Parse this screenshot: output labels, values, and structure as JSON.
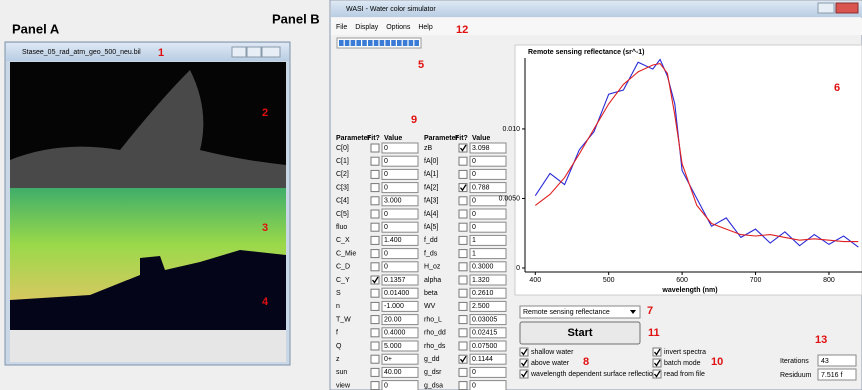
{
  "panel_a": {
    "label": "Panel A",
    "window_title": "Stasee_05_rad_atm_geo_500_neu.bil",
    "markers": [
      "1",
      "2",
      "3",
      "4"
    ]
  },
  "panel_b": {
    "label": "Panel B",
    "window_title": "WASI - Water color simulator",
    "menu": [
      "File",
      "Display",
      "Options",
      "Help"
    ],
    "markers": [
      "5",
      "6",
      "7",
      "8",
      "9",
      "10",
      "11",
      "12",
      "13"
    ],
    "table_headers": [
      "Parameter",
      "Fit?",
      "Value"
    ],
    "params_left": [
      {
        "name": "C[0]",
        "fit": false,
        "value": "0",
        "disabled": false
      },
      {
        "name": "C[1]",
        "fit": false,
        "value": "0",
        "disabled": false
      },
      {
        "name": "C[2]",
        "fit": false,
        "value": "0",
        "disabled": false
      },
      {
        "name": "C[3]",
        "fit": false,
        "value": "0",
        "disabled": false
      },
      {
        "name": "C[4]",
        "fit": false,
        "value": "3.000",
        "disabled": false
      },
      {
        "name": "C[5]",
        "fit": false,
        "value": "0",
        "disabled": false
      },
      {
        "name": "fluo",
        "fit": false,
        "value": "0",
        "disabled": true
      },
      {
        "name": "C_X",
        "fit": false,
        "value": "1.400",
        "disabled": false
      },
      {
        "name": "C_Mie",
        "fit": false,
        "value": "0",
        "disabled": false
      },
      {
        "name": "C_D",
        "fit": false,
        "value": "0",
        "disabled": false
      },
      {
        "name": "C_Y",
        "fit": true,
        "value": "0.1357",
        "disabled": false
      },
      {
        "name": "S",
        "fit": false,
        "value": "0.01400",
        "disabled": false
      },
      {
        "name": "n",
        "fit": false,
        "value": "-1.000",
        "disabled": false
      },
      {
        "name": "T_W",
        "fit": false,
        "value": "20.00",
        "disabled": true
      },
      {
        "name": "f",
        "fit": false,
        "value": "0.4000",
        "disabled": true
      },
      {
        "name": "Q",
        "fit": false,
        "value": "5.000",
        "disabled": false
      },
      {
        "name": "z",
        "fit": false,
        "value": "0+",
        "disabled": true
      },
      {
        "name": "sun",
        "fit": false,
        "value": "40.00",
        "disabled": false
      },
      {
        "name": "view",
        "fit": false,
        "value": "0",
        "disabled": false
      }
    ],
    "params_right": [
      {
        "name": "zB",
        "fit": true,
        "value": "3.098",
        "disabled": false
      },
      {
        "name": "fA[0]",
        "fit": false,
        "value": "0",
        "disabled": false
      },
      {
        "name": "fA[1]",
        "fit": false,
        "value": "0",
        "disabled": false
      },
      {
        "name": "fA[2]",
        "fit": true,
        "value": "0.788",
        "disabled": false
      },
      {
        "name": "fA[3]",
        "fit": false,
        "value": "0",
        "disabled": false
      },
      {
        "name": "fA[4]",
        "fit": false,
        "value": "0",
        "disabled": false
      },
      {
        "name": "fA[5]",
        "fit": false,
        "value": "0",
        "disabled": false
      },
      {
        "name": "f_dd",
        "fit": false,
        "value": "1",
        "disabled": true
      },
      {
        "name": "f_ds",
        "fit": false,
        "value": "1",
        "disabled": true
      },
      {
        "name": "H_oz",
        "fit": false,
        "value": "0.3000",
        "disabled": true
      },
      {
        "name": "alpha",
        "fit": false,
        "value": "1.320",
        "disabled": true
      },
      {
        "name": "beta",
        "fit": false,
        "value": "0.2610",
        "disabled": true
      },
      {
        "name": "WV",
        "fit": false,
        "value": "2.500",
        "disabled": true
      },
      {
        "name": "rho_L",
        "fit": false,
        "value": "0.03005",
        "disabled": true
      },
      {
        "name": "rho_dd",
        "fit": false,
        "value": "0.02415",
        "disabled": true
      },
      {
        "name": "rho_ds",
        "fit": false,
        "value": "0.07500",
        "disabled": true
      },
      {
        "name": "g_dd",
        "fit": true,
        "value": "0.1144",
        "disabled": false
      },
      {
        "name": "g_dsr",
        "fit": false,
        "value": "0",
        "disabled": false
      },
      {
        "name": "g_dsa",
        "fit": false,
        "value": "0",
        "disabled": false
      }
    ],
    "dropdown": "Remote sensing reflectance",
    "start_button": "Start",
    "options_left": [
      {
        "label": "shallow water",
        "checked": true
      },
      {
        "label": "above water",
        "checked": true
      },
      {
        "label": "wavelength dependent surface reflections",
        "checked": true
      }
    ],
    "options_right": [
      {
        "label": "invert spectra",
        "checked": true
      },
      {
        "label": "batch mode",
        "checked": true
      },
      {
        "label": "read from file",
        "checked": true
      }
    ],
    "iterations_label": "Iterations",
    "iterations": "43",
    "residuum_label": "Residuum",
    "residuum": "7.516 f",
    "plot": {
      "type": "line",
      "title": "Remote sensing reflectance (sr^-1)",
      "x_label": "wavelength (nm)",
      "x": [
        400,
        420,
        440,
        460,
        480,
        500,
        520,
        540,
        560,
        570,
        580,
        590,
        600,
        620,
        640,
        660,
        680,
        700,
        720,
        740,
        760,
        780,
        800,
        820,
        840
      ],
      "series": [
        {
          "color": "#2b2bd6",
          "values": [
            0.0052,
            0.0068,
            0.006,
            0.0085,
            0.0098,
            0.0125,
            0.0128,
            0.0148,
            0.0143,
            0.015,
            0.0138,
            0.0118,
            0.007,
            0.005,
            0.003,
            0.0036,
            0.0022,
            0.0028,
            0.0018,
            0.0026,
            0.0016,
            0.0024,
            0.0017,
            0.0023,
            0.0015
          ]
        },
        {
          "color": "#e02020",
          "values": [
            0.0045,
            0.0053,
            0.0065,
            0.0082,
            0.01,
            0.0118,
            0.0132,
            0.0141,
            0.0146,
            0.0147,
            0.014,
            0.011,
            0.0075,
            0.0045,
            0.0032,
            0.0028,
            0.0024,
            0.0023,
            0.0024,
            0.0022,
            0.002,
            0.0021,
            0.002,
            0.0019,
            0.0019
          ]
        }
      ],
      "xlim": [
        386,
        845
      ],
      "ylim": [
        0,
        0.0151
      ],
      "xticks": [
        400,
        500,
        600,
        700,
        800
      ],
      "yticks": [
        0,
        {
          "value": 0.005,
          "label": "0.0050"
        },
        {
          "value": 0.01,
          "label": "0.010"
        }
      ]
    }
  }
}
